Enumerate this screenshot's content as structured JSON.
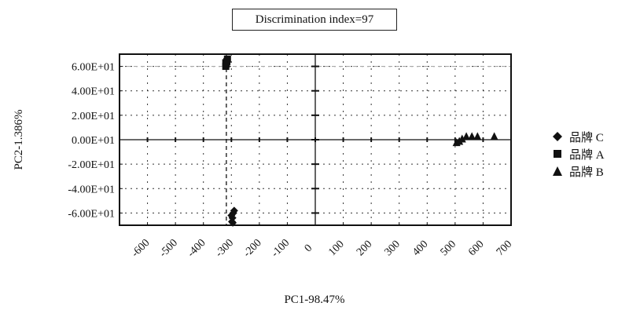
{
  "chart_data": {
    "type": "scatter",
    "title": "Discrimination index=97",
    "xlabel": "PC1-98.47%",
    "ylabel": "PC2-1.386%",
    "xlim": [
      -700,
      700
    ],
    "ylim": [
      -70,
      70
    ],
    "x_ticks": [
      -600,
      -500,
      -400,
      -300,
      -200,
      -100,
      0,
      100,
      200,
      300,
      400,
      500,
      600,
      700
    ],
    "x_tick_labels": [
      "-600",
      "-500",
      "-400",
      "-300",
      "-200",
      "-100",
      "0",
      "100",
      "200",
      "300",
      "400",
      "500",
      "600",
      "700"
    ],
    "y_ticks": [
      60,
      40,
      20,
      0,
      -20,
      -40,
      -60
    ],
    "y_tick_labels": [
      "6.00E+01",
      "4.00E+01",
      "2.00E+01",
      "0.00E+01",
      "-2.00E+01",
      "-4.00E+01",
      "-6.00E+01"
    ],
    "grid": true,
    "legend_position": "right",
    "series": [
      {
        "name": "品牌 C",
        "marker": "diamond",
        "color": "#111111",
        "points": [
          [
            -300,
            -62
          ],
          [
            -296,
            -64
          ],
          [
            -293,
            -60
          ],
          [
            -290,
            -58
          ],
          [
            -298,
            -67
          ],
          [
            -295,
            -68
          ]
        ]
      },
      {
        "name": "品牌 A",
        "marker": "square",
        "color": "#111111",
        "points": [
          [
            -320,
            60
          ],
          [
            -318,
            62
          ],
          [
            -316,
            64
          ],
          [
            -314,
            66
          ],
          [
            -320,
            63
          ]
        ]
      },
      {
        "name": "品牌 B",
        "marker": "triangle",
        "color": "#111111",
        "points": [
          [
            505,
            -2
          ],
          [
            515,
            -1
          ],
          [
            525,
            1
          ],
          [
            540,
            3
          ],
          [
            560,
            3
          ],
          [
            580,
            3
          ],
          [
            640,
            3
          ]
        ]
      }
    ]
  }
}
